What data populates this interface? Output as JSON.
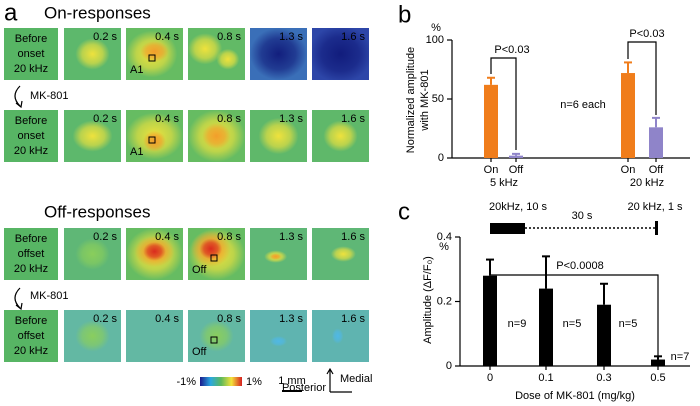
{
  "panel_a": {
    "letter": "a",
    "sections": [
      {
        "title": "On-responses",
        "drug": "MK-801",
        "rows": [
          {
            "label": [
              "Before",
              "onset",
              "20 kHz"
            ],
            "roi": "A1"
          },
          {
            "label": [
              "Before",
              "onset",
              "20 kHz"
            ],
            "roi": "A1"
          }
        ]
      },
      {
        "title": "Off-responses",
        "drug": "MK-801",
        "rows": [
          {
            "label": [
              "Before",
              "offset",
              "20 kHz"
            ],
            "roi": "Off"
          },
          {
            "label": [
              "Before",
              "offset",
              "20 kHz"
            ],
            "roi": "Off"
          }
        ]
      }
    ],
    "times": [
      "0.2 s",
      "0.4 s",
      "0.8 s",
      "1.3 s",
      "1.6 s"
    ],
    "colorbar": {
      "min_label": "-1%",
      "max_label": "1%"
    },
    "scale_bar": "1 mm",
    "orientation": [
      "Posterior",
      "Medial"
    ]
  },
  "chart_data": [
    {
      "type": "bar",
      "letter": "b",
      "ylabel": [
        "Normalized amplitude",
        "with MK-801"
      ],
      "y_unit": "%",
      "categories": [
        "On",
        "Off",
        "On",
        "Off"
      ],
      "groups": [
        "5 kHz",
        "20 kHz"
      ],
      "values": [
        62,
        2,
        72,
        26
      ],
      "errors": [
        6,
        1.5,
        9,
        8
      ],
      "colors": [
        "#f07d1b",
        "#8f84c9",
        "#f07d1b",
        "#8f84c9"
      ],
      "ylim": [
        0,
        100
      ],
      "yticks": [
        0,
        50,
        100
      ],
      "annotations": [
        "P<0.03",
        "P<0.03",
        "n=6 each"
      ]
    },
    {
      "type": "bar",
      "letter": "c",
      "ylabel": [
        "Amplitude (ΔF/F₀)"
      ],
      "y_unit": "%",
      "xlabel": "Dose of MK-801 (mg/kg)",
      "categories": [
        "0",
        "0.1",
        "0.3",
        "0.5"
      ],
      "values": [
        0.28,
        0.24,
        0.19,
        0.02
      ],
      "errors": [
        0.05,
        0.1,
        0.065,
        0.01
      ],
      "color": "#000000",
      "ylim": [
        0,
        0.4
      ],
      "yticks": [
        0,
        0.2,
        0.4
      ],
      "n_labels": [
        "n=9",
        "n=5",
        "n=5",
        "n=7"
      ],
      "annotations": [
        "P<0.0008"
      ],
      "stimulus_labels": [
        "20kHz, 10 s",
        "30 s",
        "20 kHz, 1 s"
      ]
    }
  ]
}
